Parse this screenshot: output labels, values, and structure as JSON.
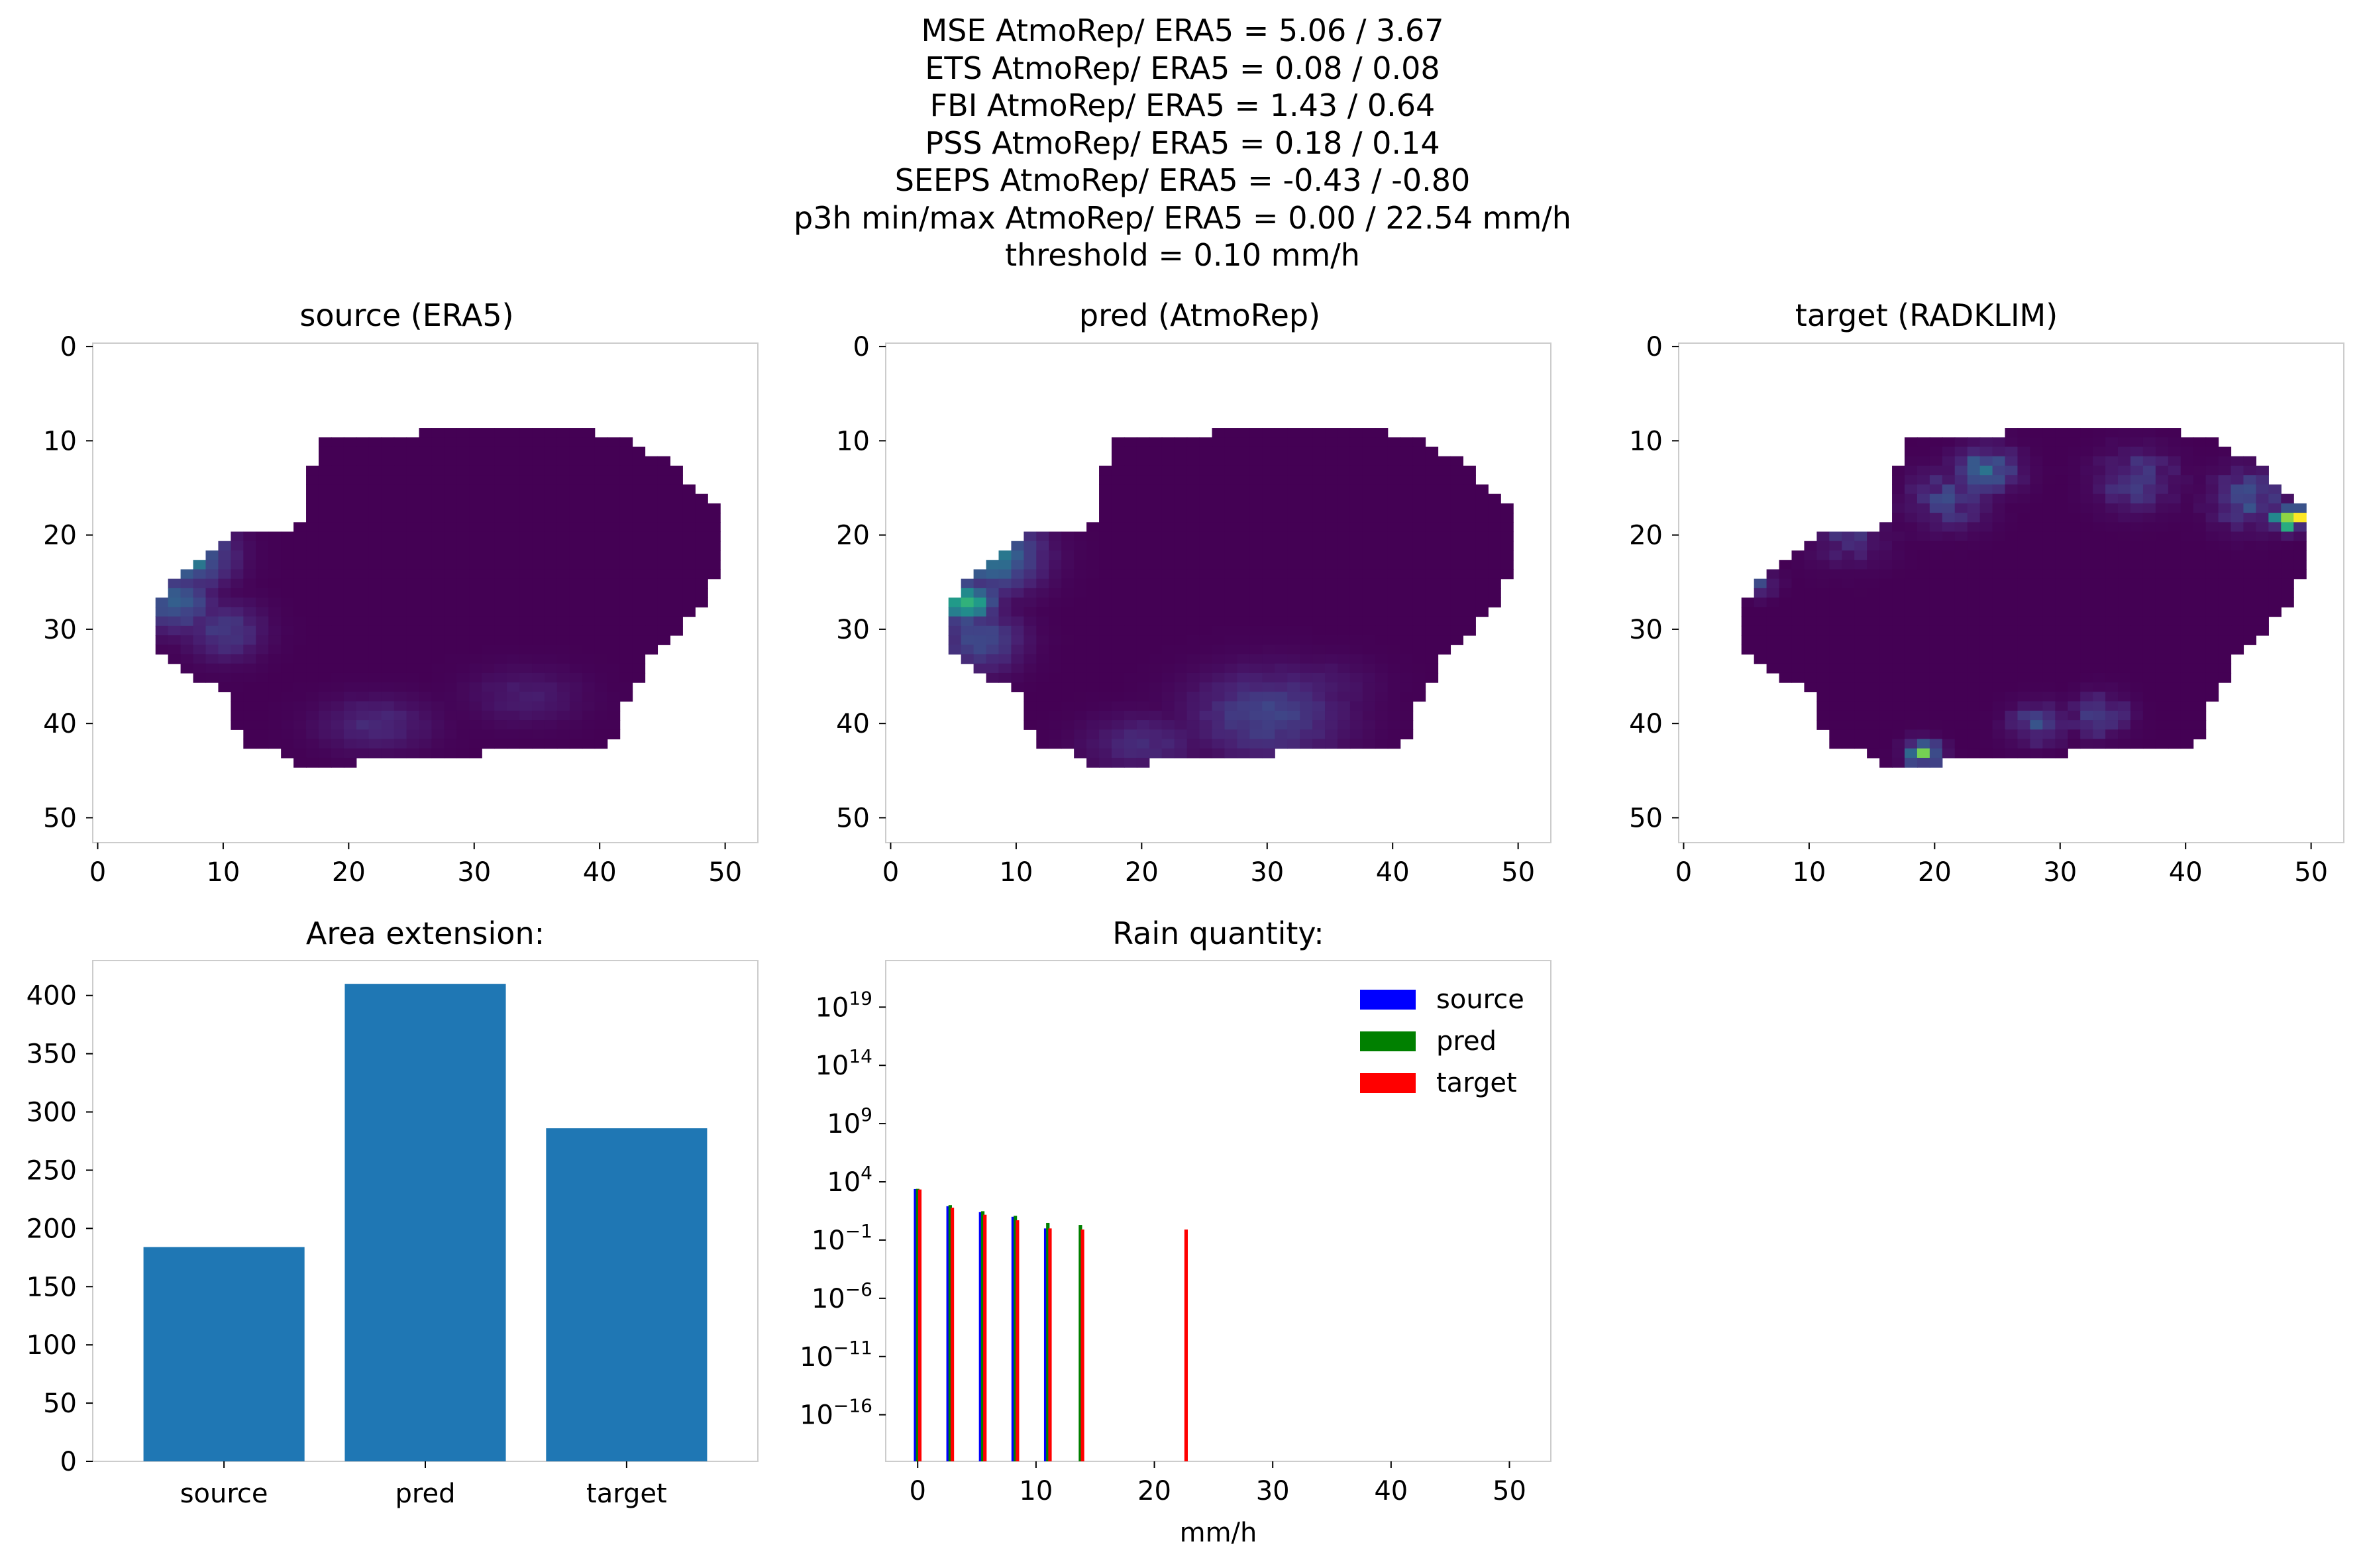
{
  "header": {
    "lines": [
      "MSE AtmoRep/ ERA5 = 5.06 / 3.67",
      "ETS AtmoRep/ ERA5 = 0.08 / 0.08",
      "FBI AtmoRep/ ERA5 = 1.43 / 0.64",
      "PSS AtmoRep/ ERA5 = 0.18 / 0.14",
      "SEEPS AtmoRep/ ERA5 = -0.43 / -0.80",
      "p3h min/max AtmoRep/ ERA5 = 0.00 / 22.54 mm/h",
      "threshold = 0.10 mm/h"
    ]
  },
  "colors": {
    "viridis_low": "#440154",
    "viridis_mid": "#31688e",
    "viridis_teal": "#21918c",
    "viridis_green": "#3fbc73",
    "viridis_high": "#fde725",
    "bar": "#1f77b4",
    "source": "#0000ff",
    "pred": "#008000",
    "target": "#ff0000",
    "axis": "#cccccc"
  },
  "chart_data": [
    {
      "type": "heatmap",
      "title": "source (ERA5)",
      "xlim": [
        0,
        53
      ],
      "ylim": [
        53,
        0
      ],
      "xticks": [
        0,
        10,
        20,
        30,
        40,
        50
      ],
      "yticks": [
        0,
        10,
        20,
        30,
        40,
        50
      ],
      "grid": false
    },
    {
      "type": "heatmap",
      "title": "pred (AtmoRep)",
      "xlim": [
        0,
        53
      ],
      "ylim": [
        53,
        0
      ],
      "xticks": [
        0,
        10,
        20,
        30,
        40,
        50
      ],
      "yticks": [
        0,
        10,
        20,
        30,
        40,
        50
      ],
      "grid": false
    },
    {
      "type": "heatmap",
      "title": "target (RADKLIM)",
      "xlim": [
        0,
        53
      ],
      "ylim": [
        53,
        0
      ],
      "xticks": [
        0,
        10,
        20,
        30,
        40,
        50
      ],
      "yticks": [
        0,
        10,
        20,
        30,
        40,
        50
      ],
      "grid": false
    },
    {
      "type": "bar",
      "title": "Area extension:",
      "categories": [
        "source",
        "pred",
        "target"
      ],
      "values": [
        184,
        410,
        286
      ],
      "ylim": [
        0,
        430
      ],
      "yticks": [
        0,
        50,
        100,
        150,
        200,
        250,
        300,
        350,
        400
      ],
      "grid": false
    },
    {
      "type": "bar",
      "title": "Rain quantity:",
      "xlabel": "mm/h",
      "xlim": [
        -2.7,
        53.5
      ],
      "xticks": [
        0,
        10,
        20,
        30,
        40,
        50
      ],
      "yscale": "log",
      "ylim_exp": [
        -20,
        23
      ],
      "yticks_exp": [
        -16,
        -11,
        -6,
        -1,
        4,
        9,
        14,
        19
      ],
      "legend": "top-right",
      "series": [
        {
          "name": "source",
          "x": [
            0.0,
            2.75,
            5.5,
            8.25,
            11.0
          ],
          "values": [
            2400,
            80,
            25,
            10,
            1
          ]
        },
        {
          "name": "pred",
          "x": [
            0.0,
            2.75,
            5.5,
            8.25,
            11.0,
            13.75
          ],
          "values": [
            2500,
            100,
            30,
            12,
            3,
            2
          ]
        },
        {
          "name": "target",
          "x": [
            0.0,
            2.75,
            5.5,
            8.25,
            11.0,
            13.75,
            22.5
          ],
          "values": [
            2200,
            60,
            15,
            5,
            1,
            0.8,
            0.8
          ]
        }
      ]
    }
  ]
}
